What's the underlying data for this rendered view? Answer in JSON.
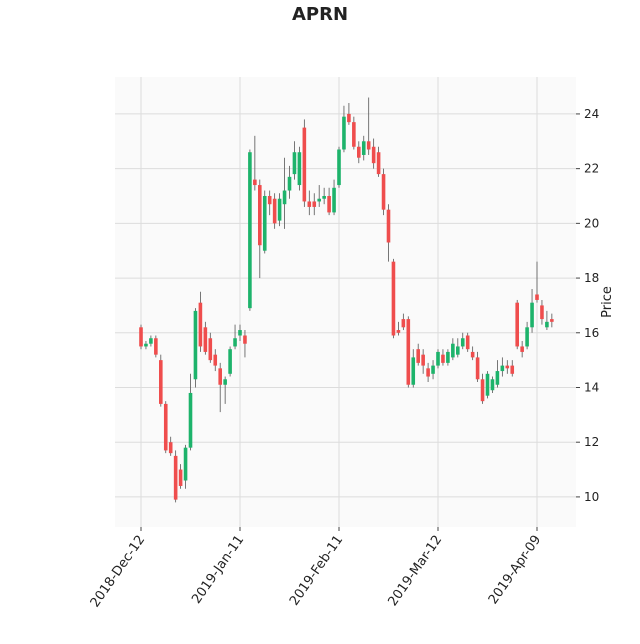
{
  "chart_data": {
    "type": "candlestick",
    "title": "APRN",
    "ylabel": "Price",
    "categories": [
      "2018-Dec-12",
      null,
      null,
      null,
      null,
      null,
      null,
      null,
      null,
      null,
      null,
      null,
      null,
      null,
      null,
      null,
      null,
      null,
      null,
      null,
      "2019-Jan-11",
      null,
      null,
      null,
      null,
      null,
      null,
      null,
      null,
      null,
      null,
      null,
      null,
      null,
      null,
      null,
      null,
      null,
      null,
      null,
      "2019-Feb-11",
      null,
      null,
      null,
      null,
      null,
      null,
      null,
      null,
      null,
      null,
      null,
      null,
      null,
      null,
      null,
      null,
      null,
      null,
      null,
      "2019-Mar-12",
      null,
      null,
      null,
      null,
      null,
      null,
      null,
      null,
      null,
      null,
      null,
      null,
      null,
      null,
      null,
      null,
      null,
      null,
      null,
      "2019-Apr-09",
      null,
      null,
      null
    ],
    "open": [
      16.2,
      15.5,
      15.6,
      15.8,
      15.0,
      13.4,
      12.0,
      11.5,
      11.0,
      10.6,
      11.8,
      14.3,
      17.1,
      16.2,
      15.8,
      15.2,
      14.7,
      14.1,
      14.5,
      15.5,
      15.9,
      15.9,
      16.9,
      21.6,
      21.4,
      19.0,
      21.0,
      20.9,
      20.1,
      20.7,
      21.2,
      21.8,
      21.4,
      23.5,
      20.8,
      20.8,
      20.8,
      20.9,
      21.0,
      20.4,
      21.4,
      22.7,
      24.0,
      23.7,
      22.8,
      22.5,
      23.0,
      22.8,
      22.6,
      21.8,
      20.5,
      18.6,
      16.1,
      16.5,
      16.5,
      14.1,
      15.4,
      15.2,
      14.7,
      14.5,
      14.8,
      15.2,
      14.9,
      15.1,
      15.2,
      15.5,
      15.9,
      15.3,
      15.1,
      14.3,
      13.7,
      13.9,
      14.1,
      14.6,
      14.8,
      14.8,
      17.1,
      15.5,
      15.5,
      16.2,
      17.4,
      17.0,
      16.2,
      16.5
    ],
    "high": [
      16.3,
      15.7,
      15.9,
      15.9,
      15.2,
      13.5,
      12.2,
      11.7,
      11.2,
      11.9,
      14.5,
      16.9,
      17.5,
      16.4,
      16.0,
      15.4,
      14.9,
      14.4,
      15.5,
      16.3,
      16.3,
      16.1,
      22.7,
      23.2,
      21.6,
      21.2,
      21.2,
      21.1,
      21.1,
      22.4,
      22.1,
      23.0,
      22.8,
      23.8,
      21.2,
      21.1,
      21.4,
      21.3,
      21.3,
      21.6,
      22.8,
      24.3,
      24.4,
      23.9,
      23.0,
      23.2,
      24.6,
      23.1,
      22.8,
      22.0,
      20.7,
      18.7,
      16.4,
      16.7,
      16.6,
      15.4,
      15.6,
      15.4,
      14.9,
      15.0,
      15.4,
      15.4,
      15.4,
      15.8,
      15.8,
      16.0,
      16.0,
      15.5,
      15.3,
      14.5,
      14.6,
      14.4,
      15.0,
      15.1,
      15.0,
      15.0,
      17.2,
      15.7,
      16.4,
      17.6,
      18.6,
      17.2,
      16.8,
      16.7
    ],
    "low": [
      15.4,
      15.4,
      15.5,
      15.1,
      13.3,
      11.6,
      11.5,
      9.8,
      10.3,
      10.3,
      11.7,
      14.0,
      15.3,
      15.2,
      14.9,
      14.6,
      13.1,
      13.4,
      14.4,
      15.4,
      15.7,
      15.1,
      16.8,
      21.2,
      18.0,
      18.9,
      20.3,
      19.8,
      19.9,
      19.8,
      20.9,
      21.6,
      21.2,
      20.6,
      20.3,
      20.3,
      20.6,
      20.7,
      20.3,
      20.3,
      21.3,
      22.6,
      23.6,
      22.7,
      22.2,
      22.3,
      22.5,
      22.0,
      21.7,
      20.3,
      18.6,
      15.8,
      15.9,
      16.1,
      14.0,
      14.0,
      14.8,
      14.5,
      14.2,
      14.3,
      14.7,
      14.8,
      14.8,
      15.0,
      15.1,
      15.4,
      15.3,
      15.0,
      14.2,
      13.4,
      13.6,
      13.8,
      14.0,
      14.4,
      14.5,
      14.4,
      15.4,
      15.1,
      15.4,
      16.0,
      17.1,
      16.3,
      16.1,
      16.2
    ],
    "close": [
      15.5,
      15.6,
      15.8,
      15.2,
      13.4,
      11.7,
      11.6,
      9.9,
      10.4,
      11.8,
      13.8,
      16.8,
      15.5,
      15.3,
      15.0,
      14.8,
      14.1,
      14.3,
      15.4,
      15.8,
      16.1,
      15.6,
      22.6,
      21.4,
      19.2,
      21.0,
      20.7,
      20.0,
      20.9,
      21.2,
      21.7,
      22.6,
      22.6,
      20.8,
      20.6,
      20.6,
      20.9,
      21.0,
      20.4,
      21.3,
      22.7,
      23.9,
      23.7,
      22.8,
      22.4,
      23.0,
      22.7,
      22.2,
      21.8,
      20.5,
      19.3,
      15.9,
      16.0,
      16.2,
      14.1,
      15.1,
      14.9,
      14.8,
      14.4,
      14.8,
      15.3,
      14.9,
      15.3,
      15.6,
      15.5,
      15.8,
      15.4,
      15.1,
      14.3,
      13.5,
      14.5,
      14.3,
      14.6,
      14.8,
      14.7,
      14.5,
      15.5,
      15.3,
      16.2,
      17.1,
      17.2,
      16.5,
      16.4,
      16.4
    ],
    "up_color": "#1db36b",
    "down_color": "#ef4d4d",
    "ylim": [
      8.9,
      25.35
    ],
    "yticks": [
      10,
      12,
      14,
      16,
      18,
      20,
      22,
      24
    ],
    "grid": true
  }
}
